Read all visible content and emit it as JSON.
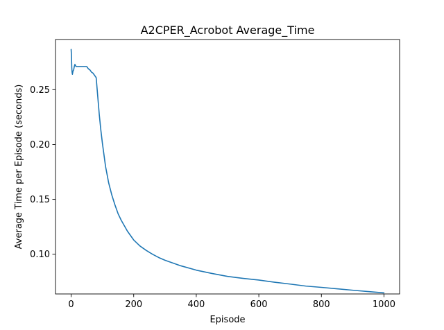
{
  "chart_data": {
    "type": "line",
    "title": "A2CPER_Acrobot Average_Time",
    "xlabel": "Episode",
    "ylabel": "Average Time per Episode (seconds)",
    "xlim": [
      -50,
      1050
    ],
    "ylim": [
      0.0638,
      0.2957
    ],
    "x_ticks": [
      0,
      200,
      400,
      600,
      800,
      1000
    ],
    "x_tick_labels": [
      "0",
      "200",
      "400",
      "600",
      "800",
      "1000"
    ],
    "y_ticks": [
      0.1,
      0.15,
      0.2,
      0.25
    ],
    "y_tick_labels": [
      "0.10",
      "0.15",
      "0.20",
      "0.25"
    ],
    "grid": false,
    "legend": "none",
    "series": [
      {
        "color": "#1f77b4",
        "x": [
          0,
          1,
          2,
          3,
          4,
          6,
          8,
          10,
          12,
          14,
          16,
          18,
          20,
          22,
          25,
          28,
          30,
          33,
          36,
          40,
          45,
          50,
          55,
          60,
          65,
          70,
          75,
          80,
          85,
          90,
          95,
          100,
          110,
          120,
          130,
          140,
          150,
          160,
          180,
          200,
          220,
          240,
          260,
          280,
          300,
          350,
          400,
          450,
          500,
          550,
          600,
          650,
          700,
          750,
          800,
          850,
          900,
          950,
          1000
        ],
        "values": [
          0.2867,
          0.281,
          0.27,
          0.266,
          0.264,
          0.267,
          0.268,
          0.271,
          0.273,
          0.272,
          0.271,
          0.271,
          0.271,
          0.271,
          0.271,
          0.271,
          0.271,
          0.271,
          0.271,
          0.271,
          0.271,
          0.271,
          0.269,
          0.268,
          0.266,
          0.265,
          0.263,
          0.261,
          0.244,
          0.227,
          0.213,
          0.201,
          0.18,
          0.165,
          0.154,
          0.145,
          0.137,
          0.131,
          0.121,
          0.113,
          0.1075,
          0.1035,
          0.1,
          0.097,
          0.0945,
          0.0895,
          0.0855,
          0.0825,
          0.0798,
          0.078,
          0.0765,
          0.0745,
          0.0728,
          0.071,
          0.0698,
          0.0685,
          0.0672,
          0.066,
          0.0648
        ]
      }
    ]
  }
}
